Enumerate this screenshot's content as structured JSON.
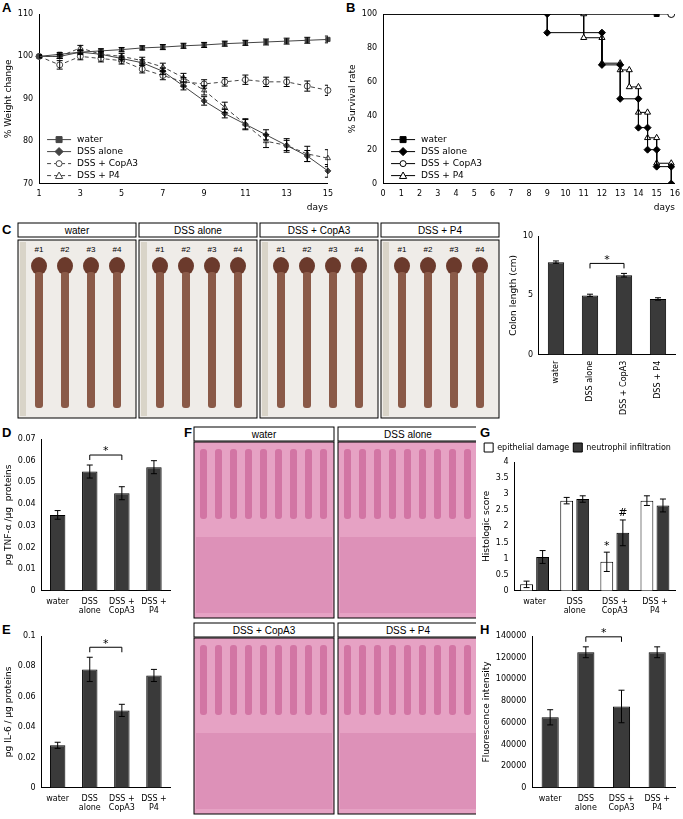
{
  "chart_data": [
    {
      "panel": "A",
      "type": "line",
      "y_label": "% Weight change",
      "x_label": "days",
      "categories": [
        "1",
        null,
        "3",
        null,
        "5",
        null,
        "7",
        null,
        "9",
        null,
        "11",
        null,
        "13",
        null,
        "15"
      ],
      "ylim": [
        70,
        110
      ],
      "yticks": [
        70,
        80,
        90,
        100,
        110
      ],
      "grid": false,
      "legend": "bottom-left",
      "series": [
        {
          "name": "water",
          "color": "#444444",
          "marker": "square",
          "line_style": "solid",
          "values": [
            100,
            100.5,
            101,
            101.3,
            101.6,
            102,
            102.2,
            102.5,
            102.7,
            103,
            103.2,
            103.4,
            103.6,
            103.8,
            104
          ],
          "errors": [
            0.3,
            0.4,
            0.4,
            0.5,
            0.5,
            0.5,
            0.6,
            0.6,
            0.6,
            0.6,
            0.6,
            0.7,
            0.7,
            0.7,
            0.8
          ]
        },
        {
          "name": "DSS alone",
          "color": "#444444",
          "marker": "diamond",
          "line_style": "solid",
          "values": [
            100,
            100,
            101,
            100.5,
            99.5,
            98.5,
            96.5,
            93,
            89.5,
            86.5,
            84,
            81.5,
            79,
            76.5,
            73
          ],
          "errors": [
            0.3,
            0.5,
            0.5,
            0.6,
            0.6,
            0.7,
            0.8,
            0.9,
            1,
            1,
            1.1,
            1.2,
            1.2,
            1.3,
            1.5
          ]
        },
        {
          "name": "DSS + CopA3",
          "color": "#444444",
          "marker": "open circle",
          "line_style": "dashed",
          "values": [
            100,
            98,
            100,
            99.5,
            99,
            97,
            95.5,
            94,
            93.5,
            94,
            94.5,
            94,
            94,
            93,
            92
          ],
          "errors": [
            0.3,
            1,
            0.8,
            0.8,
            0.8,
            0.9,
            1,
            1,
            1,
            1,
            1.1,
            1.1,
            1.1,
            1.2,
            1.2
          ]
        },
        {
          "name": "DSS + P4",
          "color": "#444444",
          "marker": "open triangle",
          "line_style": "dashed",
          "values": [
            100,
            100,
            102,
            100.5,
            100,
            99,
            97.5,
            95,
            92,
            88,
            84,
            80,
            79,
            77,
            76
          ],
          "errors": [
            0.3,
            0.5,
            0.6,
            0.7,
            0.7,
            0.8,
            0.9,
            1,
            1.1,
            1.2,
            1.3,
            1.5,
            1.6,
            1.8,
            2
          ]
        }
      ]
    },
    {
      "panel": "B",
      "type": "line",
      "y_label": "% Survival rate",
      "x_label": "days",
      "xlim": [
        0,
        16
      ],
      "xticks": [
        0,
        1,
        2,
        3,
        4,
        5,
        6,
        7,
        8,
        9,
        10,
        11,
        12,
        13,
        14,
        15,
        16
      ],
      "ylim": [
        0,
        100
      ],
      "yticks": [
        0,
        20,
        40,
        60,
        80,
        100
      ],
      "grid": false,
      "legend": "bottom-left",
      "series": [
        {
          "name": "water",
          "color": "#000000",
          "marker": "square",
          "line_style": "solid",
          "x": [
            0,
            15
          ],
          "values": [
            100,
            100
          ]
        },
        {
          "name": "DSS alone",
          "color": "#000000",
          "marker": "diamond",
          "line_style": "solid",
          "x": [
            0,
            9,
            9,
            12,
            12,
            13,
            13,
            14,
            14,
            14.5,
            14.5,
            15,
            15,
            15.8,
            15.8
          ],
          "values": [
            100,
            100,
            89,
            89,
            70,
            70,
            50,
            50,
            33,
            33,
            20,
            20,
            10,
            10,
            0
          ]
        },
        {
          "name": "DSS + CopA3",
          "color": "#000000",
          "marker": "open circle",
          "line_style": "solid",
          "x": [
            0,
            15.8
          ],
          "values": [
            100,
            100
          ]
        },
        {
          "name": "DSS + P4",
          "color": "#000000",
          "marker": "open triangle",
          "line_style": "solid",
          "x": [
            0,
            11,
            11,
            12,
            12,
            13,
            13,
            13.5,
            13.5,
            14,
            14,
            14.5,
            14.5,
            15,
            15,
            15.8
          ],
          "values": [
            100,
            100,
            86,
            86,
            71,
            71,
            67,
            67,
            57,
            57,
            42,
            42,
            27,
            27,
            12,
            12
          ]
        }
      ]
    },
    {
      "type": "bar",
      "y_label": "Colon length (cm)",
      "categories": [
        "water",
        "DSS alone",
        "DSS + CopA3",
        "DSS + P4"
      ],
      "values": [
        7.8,
        5.0,
        6.7,
        4.7
      ],
      "errors": [
        0.1,
        0.1,
        0.15,
        0.1
      ],
      "color": "#3a3a3a",
      "ylim": [
        0,
        10
      ],
      "yticks": [
        0,
        5,
        10
      ],
      "grid": false,
      "annotations": [
        {
          "from": "DSS alone",
          "to": "DSS + CopA3",
          "label": "*"
        }
      ]
    },
    {
      "panel": "D",
      "type": "bar",
      "y_label": "pg TNF-α /μg  proteins",
      "categories": [
        "water",
        "DSS alone",
        "DSS + CopA3",
        "DSS + P4"
      ],
      "values": [
        0.035,
        0.055,
        0.045,
        0.057
      ],
      "errors": [
        0.002,
        0.003,
        0.003,
        0.003
      ],
      "color": "#3a3a3a",
      "ylim": [
        0,
        0.07
      ],
      "yticks": [
        0,
        0.01,
        0.02,
        0.03,
        0.04,
        0.05,
        0.06,
        0.07
      ],
      "grid": false,
      "annotations": [
        {
          "from": "DSS alone",
          "to": "DSS + CopA3",
          "label": "*"
        }
      ]
    },
    {
      "panel": "E",
      "type": "bar",
      "y_label": "pg IL-6 / μg proteins",
      "categories": [
        "water",
        "DSS alone",
        "DSS + CopA3",
        "DSS + P4"
      ],
      "values": [
        0.028,
        0.078,
        0.051,
        0.074
      ],
      "errors": [
        0.002,
        0.008,
        0.004,
        0.004
      ],
      "color": "#3a3a3a",
      "ylim": [
        0,
        0.1
      ],
      "yticks": [
        0,
        0.02,
        0.04,
        0.06,
        0.08,
        0.1
      ],
      "grid": false,
      "annotations": [
        {
          "from": "DSS alone",
          "to": "DSS + CopA3",
          "label": "*"
        }
      ]
    },
    {
      "panel": "G",
      "type": "bar",
      "y_label": "Histologic score",
      "legend": "top",
      "categories": [
        "water",
        "DSS alone",
        "DSS + CopA3",
        "DSS + P4"
      ],
      "ylim": [
        0,
        4
      ],
      "yticks": [
        0,
        0.5,
        1,
        1.5,
        2,
        2.5,
        3,
        3.5,
        4
      ],
      "grid": false,
      "series": [
        {
          "name": "epithelial damage",
          "color": "#ffffff",
          "values": [
            0.2,
            2.8,
            0.9,
            2.8
          ],
          "errors": [
            0.1,
            0.1,
            0.3,
            0.15
          ]
        },
        {
          "name": "neutrophil infiltration",
          "color": "#3a3a3a",
          "values": [
            1.05,
            2.85,
            1.8,
            2.65
          ],
          "errors": [
            0.2,
            0.1,
            0.4,
            0.2
          ]
        }
      ],
      "annotations": [
        {
          "category": "DSS + CopA3",
          "series": "epithelial damage",
          "label": "*"
        },
        {
          "category": "DSS + CopA3",
          "series": "neutrophil infiltration",
          "label": "#"
        }
      ]
    },
    {
      "panel": "H",
      "type": "bar",
      "y_label": "Fluorescence intensity",
      "categories": [
        "water",
        "DSS alone",
        "DSS + CopA3",
        "DSS + P4"
      ],
      "values": [
        65000,
        125000,
        75000,
        125000
      ],
      "errors": [
        7000,
        5000,
        15000,
        5000
      ],
      "color": "#3a3a3a",
      "ylim": [
        0,
        140000
      ],
      "yticks": [
        0,
        20000,
        40000,
        60000,
        80000,
        100000,
        120000,
        140000
      ],
      "grid": false,
      "annotations": [
        {
          "from": "DSS alone",
          "to": "DSS + CopA3",
          "label": "*"
        }
      ]
    }
  ],
  "images": [
    {
      "panel": "C",
      "titles": [
        "water",
        "DSS alone",
        "DSS + CopA3",
        "DSS + P4"
      ],
      "sample_labels": [
        "#1",
        "#2",
        "#3",
        "#4"
      ]
    },
    {
      "panel": "F",
      "titles": [
        "water",
        "DSS alone",
        "DSS + CopA3",
        "DSS + P4"
      ]
    }
  ]
}
